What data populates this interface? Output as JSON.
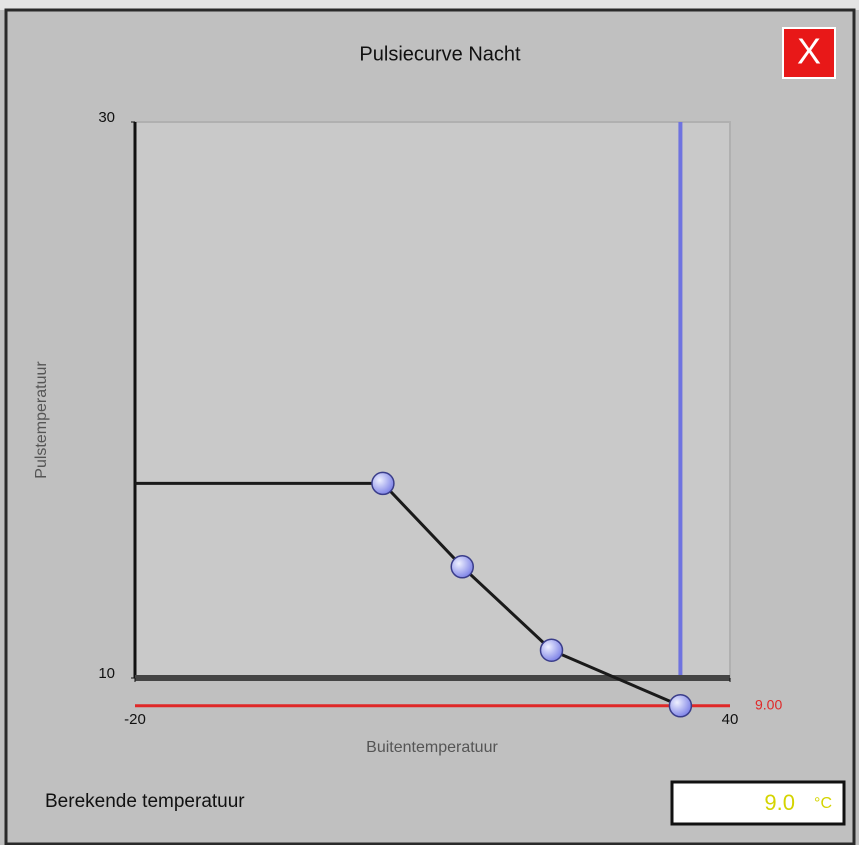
{
  "dialog": {
    "close": "X",
    "result_label": "Berekende temperatuur",
    "result_value": "9.0",
    "result_unit": "°C"
  },
  "chart_data": {
    "type": "line",
    "title": "Pulsiecurve Nacht",
    "x_label": "Buitentemperatuur",
    "y_label": "Pulstemperatuur",
    "xlim": [
      -20,
      40
    ],
    "ylim": [
      10,
      30
    ],
    "xticks": [
      -20,
      40
    ],
    "yticks": [
      10,
      30
    ],
    "series": [
      {
        "x": [
          -20,
          5,
          13,
          22,
          35
        ],
        "values": [
          17,
          17,
          14,
          11,
          9
        ],
        "color": "#1a1a1a",
        "marker_color": "#8a8ff0"
      }
    ],
    "reference_lines": [
      {
        "axis": "y",
        "value": 9,
        "label": "9.00",
        "color": "#e02828"
      },
      {
        "axis": "x",
        "value": 35,
        "color": "#6f73e0"
      }
    ]
  }
}
